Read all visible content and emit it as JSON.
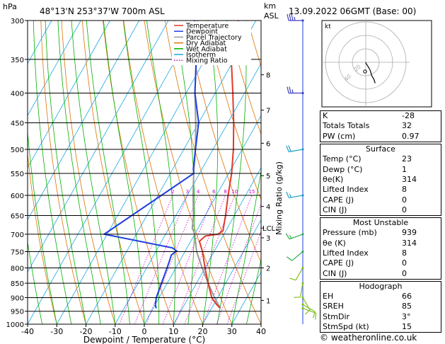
{
  "header": {
    "location": "48°13'N  253°37'W  700m  ASL",
    "datetime": "13.09.2022  06GMT  (Base: 00)",
    "hpa_unit": "hPa",
    "km_unit": "km",
    "asl_unit": "ASL"
  },
  "chart_data": {
    "type": "skew-t",
    "xlabel": "Dewpoint / Temperature (°C)",
    "ylabel_right": "Mixing Ratio (g/kg)",
    "x_ticks": [
      -40,
      -30,
      -20,
      -10,
      0,
      10,
      20,
      30,
      40
    ],
    "p_ticks": [
      300,
      350,
      400,
      450,
      500,
      550,
      600,
      650,
      700,
      750,
      800,
      850,
      900,
      950,
      1000
    ],
    "xlim": [
      -40,
      40
    ],
    "plim": [
      1000,
      300
    ],
    "km_ticks": [
      {
        "label": "1",
        "p": 910
      },
      {
        "label": "2",
        "p": 800
      },
      {
        "label": "3",
        "p": 710
      },
      {
        "label": "4",
        "p": 627
      },
      {
        "label": "5",
        "p": 555
      },
      {
        "label": "6",
        "p": 488
      },
      {
        "label": "7",
        "p": 428
      },
      {
        "label": "8",
        "p": 372
      }
    ],
    "lcl": {
      "label": "LCL",
      "p": 683
    },
    "mixing_ratio_labels": [
      "2",
      "3",
      "4",
      "6",
      "8",
      "10",
      "15",
      "20",
      "25"
    ],
    "mixing_ratios": [
      2,
      3,
      4,
      6,
      8,
      10,
      15,
      20,
      25
    ],
    "legend": [
      {
        "name": "Temperature",
        "color": "#e0392b"
      },
      {
        "name": "Dewpoint",
        "color": "#1f3fe0"
      },
      {
        "name": "Parcel Trajectory",
        "color": "#999999"
      },
      {
        "name": "Dry Adiabat",
        "color": "#e07000"
      },
      {
        "name": "Wet Adiabat",
        "color": "#00b000"
      },
      {
        "name": "Isotherm",
        "color": "#19a8e6"
      },
      {
        "name": "Mixing Ratio",
        "color": "#d000d0"
      }
    ],
    "temperature": [
      [
        939,
        23
      ],
      [
        925,
        21
      ],
      [
        900,
        18
      ],
      [
        850,
        14
      ],
      [
        800,
        10
      ],
      [
        750,
        6
      ],
      [
        720,
        3
      ],
      [
        705,
        4
      ],
      [
        700,
        8
      ],
      [
        690,
        9
      ],
      [
        650,
        7
      ],
      [
        600,
        4
      ],
      [
        550,
        1
      ],
      [
        500,
        -3
      ],
      [
        450,
        -8
      ],
      [
        400,
        -14
      ],
      [
        350,
        -21
      ],
      [
        300,
        -26
      ]
    ],
    "dewpoint": [
      [
        939,
        1
      ],
      [
        925,
        0
      ],
      [
        900,
        -1
      ],
      [
        850,
        -2
      ],
      [
        800,
        -3
      ],
      [
        760,
        -4
      ],
      [
        748,
        -3
      ],
      [
        739,
        -5
      ],
      [
        700,
        -31
      ],
      [
        550,
        -12
      ],
      [
        540,
        -13
      ],
      [
        500,
        -16
      ],
      [
        450,
        -20
      ],
      [
        400,
        -27
      ],
      [
        350,
        -33
      ],
      [
        300,
        -41
      ]
    ],
    "parcel": [
      [
        939,
        23
      ],
      [
        900,
        19
      ],
      [
        850,
        14
      ],
      [
        800,
        9
      ],
      [
        750,
        4
      ],
      [
        700,
        0
      ],
      [
        683,
        -2
      ],
      [
        650,
        -4
      ],
      [
        600,
        -8
      ],
      [
        550,
        -12
      ],
      [
        500,
        -16
      ],
      [
        450,
        -21
      ],
      [
        400,
        -27
      ],
      [
        350,
        -33
      ],
      [
        300,
        -40
      ]
    ],
    "wind_barbs_kt": [
      {
        "p": 939,
        "dir": 110,
        "spd": 10
      },
      {
        "p": 925,
        "dir": 120,
        "spd": 10
      },
      {
        "p": 900,
        "dir": 150,
        "spd": 10
      },
      {
        "p": 850,
        "dir": 190,
        "spd": 10
      },
      {
        "p": 800,
        "dir": 210,
        "spd": 10
      },
      {
        "p": 750,
        "dir": 230,
        "spd": 10
      },
      {
        "p": 700,
        "dir": 250,
        "spd": 15
      },
      {
        "p": 600,
        "dir": 260,
        "spd": 15
      },
      {
        "p": 500,
        "dir": 260,
        "spd": 20
      },
      {
        "p": 400,
        "dir": 270,
        "spd": 25
      },
      {
        "p": 300,
        "dir": 270,
        "spd": 35
      }
    ],
    "hodograph": {
      "label": "kt",
      "ring_labels": [
        "20",
        "40"
      ],
      "points": [
        [
          0,
          0
        ],
        [
          0.5,
          -2
        ],
        [
          2,
          -4
        ],
        [
          5,
          -9
        ],
        [
          7,
          -13
        ],
        [
          9,
          -20
        ],
        [
          12,
          -25
        ],
        [
          14,
          -31
        ]
      ]
    }
  },
  "indices": [
    {
      "label": "K",
      "value": "-28"
    },
    {
      "label": "Totals Totals",
      "value": "32"
    },
    {
      "label": "PW (cm)",
      "value": "0.97"
    }
  ],
  "surface": {
    "title": "Surface",
    "rows": [
      {
        "label": "Temp (°C)",
        "value": "23"
      },
      {
        "label": "Dewp (°C)",
        "value": "1"
      },
      {
        "label": "θe(K)",
        "value": "314"
      },
      {
        "label": "Lifted Index",
        "value": "8"
      },
      {
        "label": "CAPE (J)",
        "value": "0"
      },
      {
        "label": "CIN (J)",
        "value": "0"
      }
    ]
  },
  "unstable": {
    "title": "Most Unstable",
    "rows": [
      {
        "label": "Pressure (mb)",
        "value": "939"
      },
      {
        "label": "θe (K)",
        "value": "314"
      },
      {
        "label": "Lifted Index",
        "value": "8"
      },
      {
        "label": "CAPE (J)",
        "value": "0"
      },
      {
        "label": "CIN (J)",
        "value": "0"
      }
    ]
  },
  "hodo_table": {
    "title": "Hodograph",
    "rows": [
      {
        "label": "EH",
        "value": "66"
      },
      {
        "label": "SREH",
        "value": "85"
      },
      {
        "label": "StmDir",
        "value": "3°"
      },
      {
        "label": "StmSpd (kt)",
        "value": "15"
      }
    ]
  },
  "credit": "© weatheronline.co.uk"
}
